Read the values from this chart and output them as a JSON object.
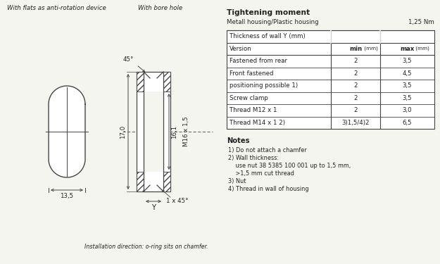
{
  "bg_color": "#f5f5f0",
  "title_left": "With flats as anti-rotation device",
  "title_center": "With bore hole",
  "tightening_title": "Tightening moment",
  "tightening_subtitle": "Metall housing/Plastic housing",
  "tightening_value": "1,25 Nm",
  "table_header": "Thickness of wall Y (mm)",
  "table_col_headers": [
    "Version",
    "min (mm)",
    "max (mm)"
  ],
  "table_rows": [
    [
      "Fastened from rear",
      "2",
      "3,5"
    ],
    [
      "Front fastened",
      "2",
      "4,5"
    ],
    [
      "positioning possible 1)",
      "2",
      "3,5"
    ],
    [
      "Screw clamp",
      "2",
      "3,5"
    ],
    [
      "Thread M12 x 1",
      "2",
      "3,0"
    ],
    [
      "Thread M14 x 1 2)",
      "3)1,5/4)2",
      "6,5"
    ]
  ],
  "notes_title": "Notes",
  "notes": [
    "1) Do not attach a chamfer",
    "2) Wall thickness:",
    "    use nut 38 5385 100 001 up to 1,5 mm,",
    "    >1,5 mm cut thread",
    "3) Nut",
    "4) Thread in wall of housing"
  ],
  "dim_135": "13,5",
  "dim_170": "17,0",
  "dim_161": "16,1",
  "dim_thread": "M16 x 1,5",
  "dim_45_top": "45°",
  "dim_1x45": "1 x 45°",
  "dim_y": "Y",
  "install_note": "Installation direction: o-ring sits on chamfer.",
  "line_color": "#444444",
  "text_color": "#222222"
}
